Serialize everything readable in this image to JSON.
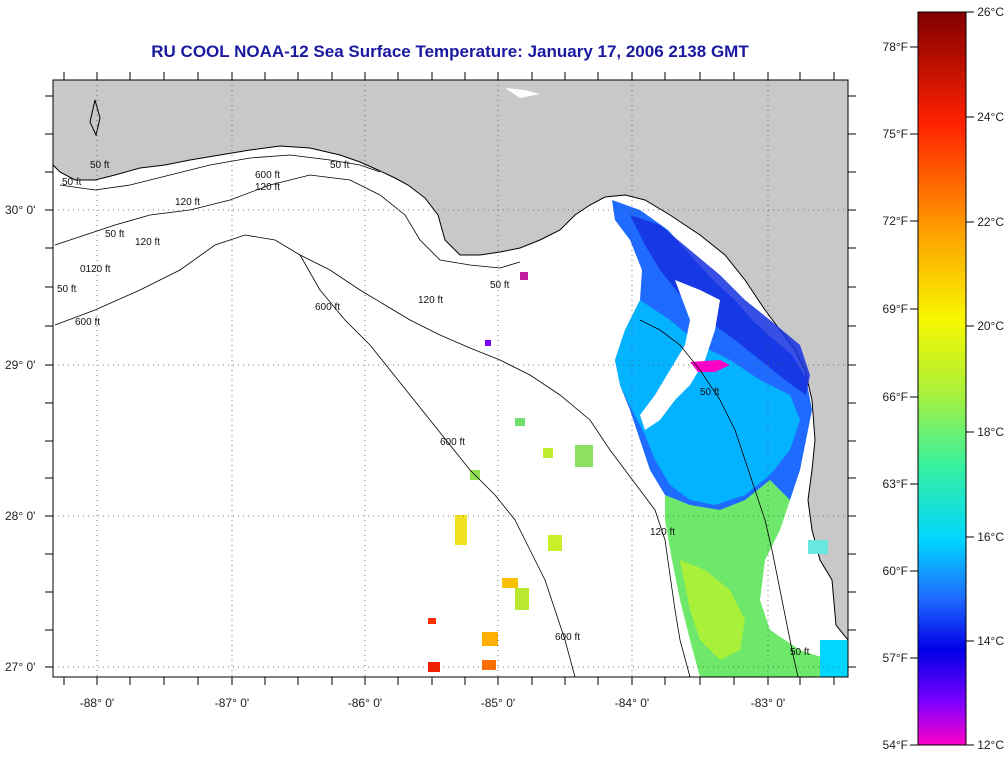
{
  "title": "RU COOL  NOAA-12  Sea Surface Temperature:  January 17, 2006 2138 GMT",
  "longitude_ticks": [
    "-88° 0'",
    "-87° 0'",
    "-86° 0'",
    "-85° 0'",
    "-84° 0'",
    "-83° 0'"
  ],
  "latitude_ticks": [
    "30° 0'",
    "29° 0'",
    "28° 0'",
    "27° 0'"
  ],
  "contour_labels": [
    "50 ft",
    "120 ft",
    "600 ft",
    "50 ft",
    "120 ft",
    "50 ft",
    "50 ft",
    "120 ft",
    "0120 ft",
    "50 ft",
    "600 ft",
    "600 ft",
    "120 ft",
    "50 ft",
    "600 ft",
    "50 ft",
    "120 ft",
    "600 ft",
    "50 ft"
  ],
  "colorbar": {
    "fahrenheit_labels": [
      "78°F",
      "75°F",
      "72°F",
      "69°F",
      "66°F",
      "63°F",
      "60°F",
      "57°F",
      "54°F"
    ],
    "celsius_labels": [
      "26°C",
      "24°C",
      "22°C",
      "20°C",
      "18°C",
      "16°C",
      "14°C",
      "12°C"
    ],
    "colors": [
      "#ff00c8",
      "#7a00ff",
      "#0000e6",
      "#1f6bff",
      "#00d6ff",
      "#36f0a0",
      "#a8f03a",
      "#f8f800",
      "#ffa000",
      "#ff2000",
      "#800000"
    ]
  },
  "colors": {
    "land": "#c8c8c8",
    "water": "#ffffff",
    "title": "#1a1aa0"
  }
}
